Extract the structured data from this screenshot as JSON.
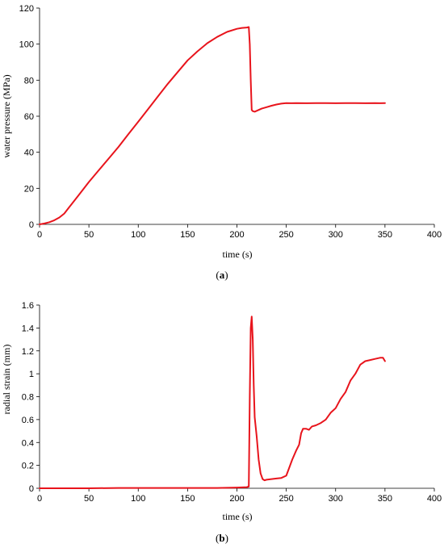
{
  "chart_data": [
    {
      "type": "line",
      "panel_label": "(a)",
      "panel_letter": "a",
      "xlabel": "time (s)",
      "ylabel": "water pressure (MPa)",
      "xlim": [
        0,
        400
      ],
      "ylim": [
        0,
        120
      ],
      "xticks": [
        0,
        50,
        100,
        150,
        200,
        250,
        300,
        350,
        400
      ],
      "yticks": [
        0,
        20,
        40,
        60,
        80,
        100,
        120
      ],
      "grid": false,
      "color": "#e8141c",
      "series": [
        {
          "x": [
            0,
            5,
            10,
            15,
            20,
            25,
            30,
            40,
            50,
            60,
            70,
            80,
            90,
            100,
            110,
            120,
            130,
            140,
            150,
            160,
            170,
            180,
            190,
            200,
            205,
            210,
            212,
            213,
            214,
            215,
            216,
            218,
            220,
            225,
            230,
            235,
            240,
            245,
            250,
            255,
            260,
            270,
            280,
            290,
            300,
            310,
            320,
            330,
            340,
            345,
            350
          ],
          "y": [
            0,
            0.5,
            1.2,
            2.3,
            3.8,
            6.0,
            9.5,
            16.5,
            23.5,
            30.0,
            36.5,
            43.0,
            50.0,
            57.0,
            64.0,
            71.0,
            78.0,
            84.5,
            91.0,
            96.0,
            100.5,
            104.0,
            106.8,
            108.5,
            109.0,
            109.2,
            109.5,
            100.0,
            80.0,
            63.5,
            62.8,
            62.5,
            63.0,
            64.2,
            65.0,
            65.8,
            66.5,
            67.0,
            67.3,
            67.2,
            67.3,
            67.2,
            67.3,
            67.3,
            67.2,
            67.3,
            67.3,
            67.2,
            67.3,
            67.2,
            67.3
          ]
        }
      ]
    },
    {
      "type": "line",
      "panel_label": "(b)",
      "panel_letter": "b",
      "xlabel": "time (s)",
      "ylabel": "radial strain (mm)",
      "xlim": [
        0,
        400
      ],
      "ylim": [
        0,
        1.6
      ],
      "xticks": [
        0,
        50,
        100,
        150,
        200,
        250,
        300,
        350,
        400
      ],
      "yticks": [
        0,
        0.2,
        0.4,
        0.6,
        0.8,
        1,
        1.2,
        1.4,
        1.6
      ],
      "grid": false,
      "color": "#e8141c",
      "series": [
        {
          "x": [
            0,
            50,
            80,
            100,
            150,
            180,
            200,
            205,
            210,
            212,
            213,
            214,
            215,
            216,
            217,
            218,
            220,
            222,
            224,
            226,
            228,
            230,
            235,
            240,
            245,
            250,
            253,
            256,
            260,
            263,
            265,
            267,
            270,
            273,
            276,
            280,
            285,
            290,
            295,
            300,
            305,
            310,
            315,
            320,
            325,
            330,
            335,
            340,
            345,
            348,
            350
          ],
          "y": [
            0,
            0,
            0.003,
            0.003,
            0.003,
            0.003,
            0.006,
            0.008,
            0.01,
            0.015,
            0.8,
            1.4,
            1.5,
            1.3,
            0.9,
            0.62,
            0.45,
            0.25,
            0.13,
            0.08,
            0.07,
            0.075,
            0.08,
            0.085,
            0.09,
            0.11,
            0.18,
            0.25,
            0.33,
            0.38,
            0.48,
            0.52,
            0.52,
            0.51,
            0.54,
            0.55,
            0.57,
            0.6,
            0.66,
            0.7,
            0.78,
            0.84,
            0.94,
            1.0,
            1.08,
            1.11,
            1.12,
            1.13,
            1.14,
            1.14,
            1.11
          ]
        }
      ]
    }
  ]
}
